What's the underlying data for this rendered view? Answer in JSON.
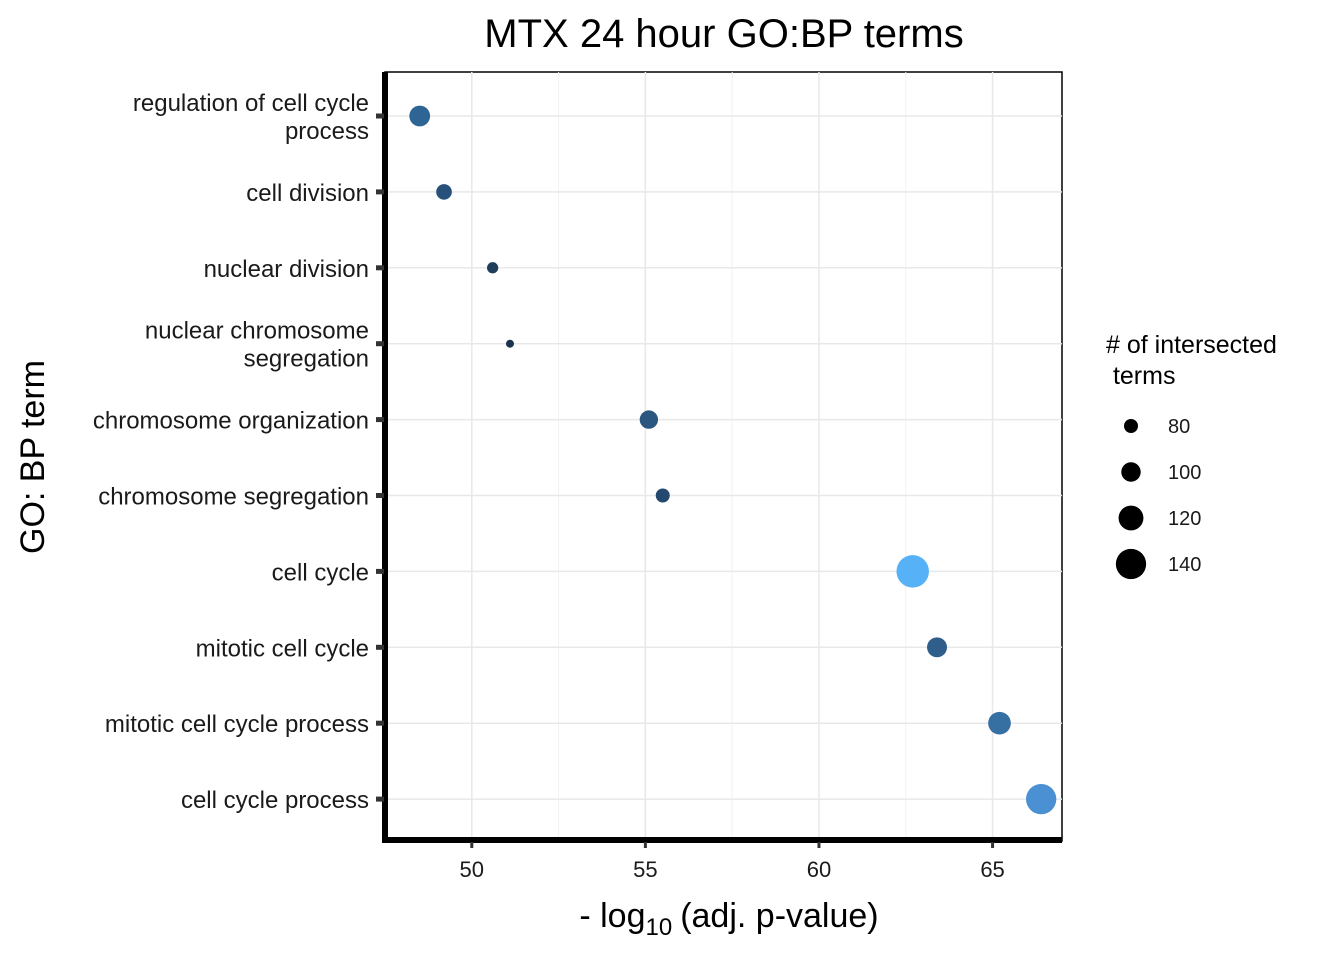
{
  "chart_data": {
    "type": "scatter",
    "title": "MTX 24 hour GO:BP terms",
    "xlabel_prefix": "- log",
    "xlabel_subscript": "10",
    "xlabel_suffix": "(adj. p-value)",
    "ylabel": "GO: BP term",
    "xlim": [
      47.5,
      67
    ],
    "xticks": [
      50,
      55,
      60,
      65
    ],
    "grid": true,
    "categories": [
      [
        "regulation of cell cycle",
        "process"
      ],
      [
        "cell division"
      ],
      [
        "nuclear division"
      ],
      [
        "nuclear chromosome",
        "segregation"
      ],
      [
        "chromosome organization"
      ],
      [
        "chromosome segregation"
      ],
      [
        "cell cycle"
      ],
      [
        "mitotic cell cycle"
      ],
      [
        "mitotic cell cycle process"
      ],
      [
        "cell cycle process"
      ]
    ],
    "points": [
      {
        "x": 48.5,
        "size": 105,
        "color": "#2f6594"
      },
      {
        "x": 49.2,
        "size": 86,
        "color": "#27507a"
      },
      {
        "x": 50.6,
        "size": 70,
        "color": "#1f3d5c"
      },
      {
        "x": 51.1,
        "size": 58,
        "color": "#1a3450"
      },
      {
        "x": 55.1,
        "size": 96,
        "color": "#2a5680"
      },
      {
        "x": 55.5,
        "size": 80,
        "color": "#25486e"
      },
      {
        "x": 62.7,
        "size": 148,
        "color": "#56b1f7"
      },
      {
        "x": 63.4,
        "size": 102,
        "color": "#2e5e89"
      },
      {
        "x": 65.2,
        "size": 112,
        "color": "#3670a3"
      },
      {
        "x": 66.4,
        "size": 140,
        "color": "#4a90d2"
      }
    ],
    "legend": {
      "title_line1": "# of intersected",
      "title_line2": " terms",
      "placement": "right",
      "sizes": [
        80,
        100,
        120,
        140
      ],
      "labels": [
        "80",
        "100",
        "120",
        "140"
      ]
    }
  }
}
